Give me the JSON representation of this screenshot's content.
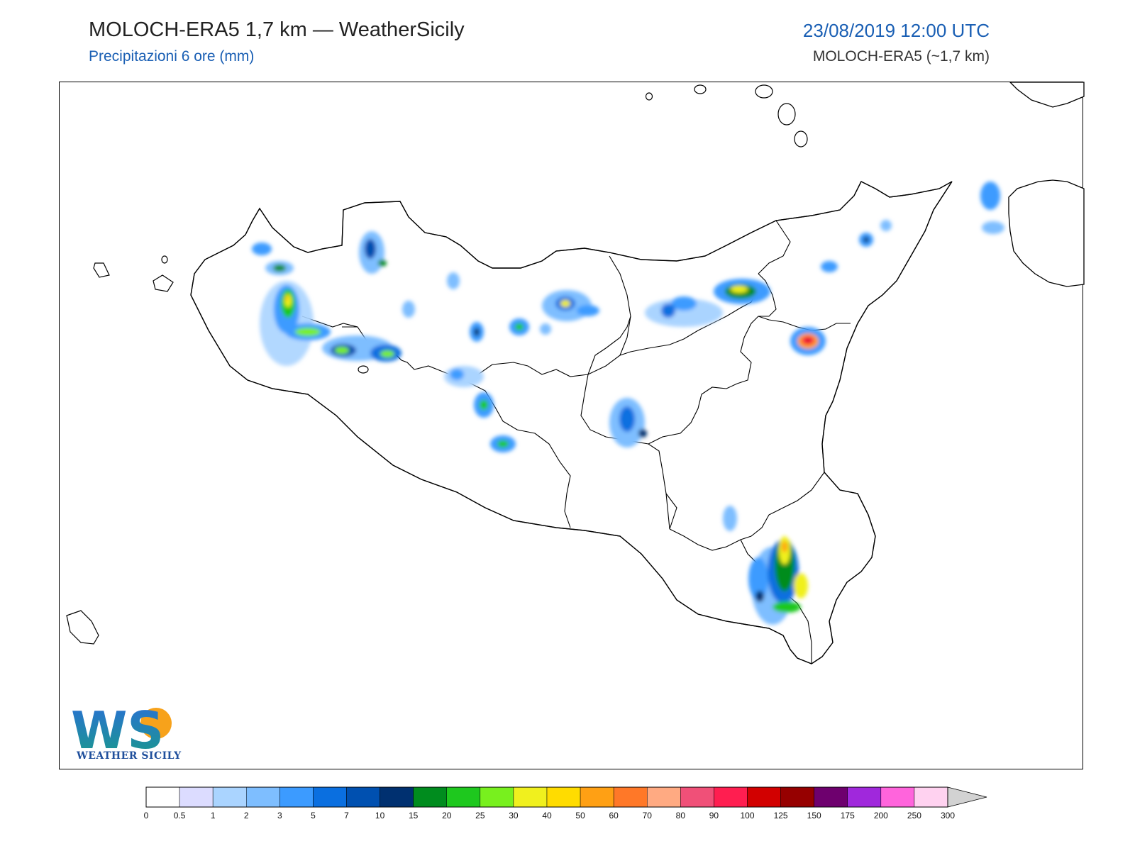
{
  "header": {
    "title": "MOLOCH-ERA5 1,7 km — WeatherSicily",
    "subtitle": "Precipitazioni 6 ore (mm)",
    "datetime": "23/08/2019 12:00 UTC",
    "model": "MOLOCH-ERA5 (~1,7 km)"
  },
  "logo": {
    "letters": "WS",
    "text": "WEATHER SICILY"
  },
  "legend": {
    "labels": [
      "0",
      "0.5",
      "1",
      "2",
      "3",
      "5",
      "7",
      "10",
      "15",
      "20",
      "25",
      "30",
      "40",
      "50",
      "60",
      "70",
      "80",
      "90",
      "100",
      "125",
      "150",
      "175",
      "200",
      "250",
      "300"
    ],
    "colors": [
      "#ffffff",
      "#dcdcff",
      "#aad4ff",
      "#7ebeff",
      "#3c9bff",
      "#0a6fe0",
      "#0050b0",
      "#003070",
      "#008c1e",
      "#1ec81e",
      "#78f01e",
      "#f0f01e",
      "#ffdc00",
      "#ffa014",
      "#ff7828",
      "#ffaa82",
      "#f05078",
      "#ff1e50",
      "#d20000",
      "#960000",
      "#6e006e",
      "#a028dc",
      "#ff64dc",
      "#ffd2f0"
    ],
    "extend_color": "#d2d2d2"
  }
}
